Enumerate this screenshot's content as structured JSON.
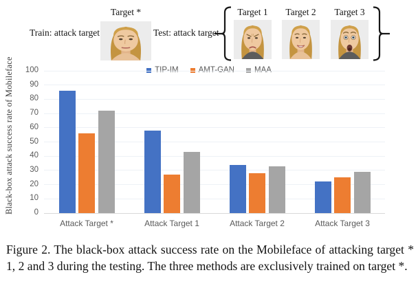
{
  "figure": {
    "header": {
      "train_label": "Train: attack target",
      "test_label": "Test: attack target",
      "train_target": {
        "label": "Target *",
        "expression": "neutral"
      },
      "test_targets": [
        {
          "label": "Target 1",
          "expression": "frown"
        },
        {
          "label": "Target 2",
          "expression": "smile"
        },
        {
          "label": "Target 3",
          "expression": "surprise"
        }
      ]
    },
    "caption": "Figure 2. The black-box attack success rate on the Mobileface of attacking target * 1, 2 and 3 during the testing. The three methods are exclusively trained on target *."
  },
  "chart_data": {
    "type": "bar",
    "title": "",
    "xlabel": "",
    "ylabel": "Black-box attack success rate of Mobileface",
    "categories": [
      "Attack Target *",
      "Attack Target 1",
      "Attack Target 2",
      "Attack Target 3"
    ],
    "series": [
      {
        "name": "TIP-IM",
        "color": "#4472C4",
        "values": [
          86,
          58,
          34,
          22
        ]
      },
      {
        "name": "AMT-GAN",
        "color": "#ED7D31",
        "values": [
          56,
          27,
          28,
          25
        ]
      },
      {
        "name": "MAA",
        "color": "#A5A5A5",
        "values": [
          72,
          43,
          33,
          29
        ]
      }
    ],
    "ylim": [
      0,
      100
    ],
    "ytick_step": 10,
    "grid": true,
    "legend_position": "top-center",
    "axis_color": "#D9D9D9",
    "gridline_color": "#EDF1F6",
    "tick_label_color": "#595959"
  }
}
